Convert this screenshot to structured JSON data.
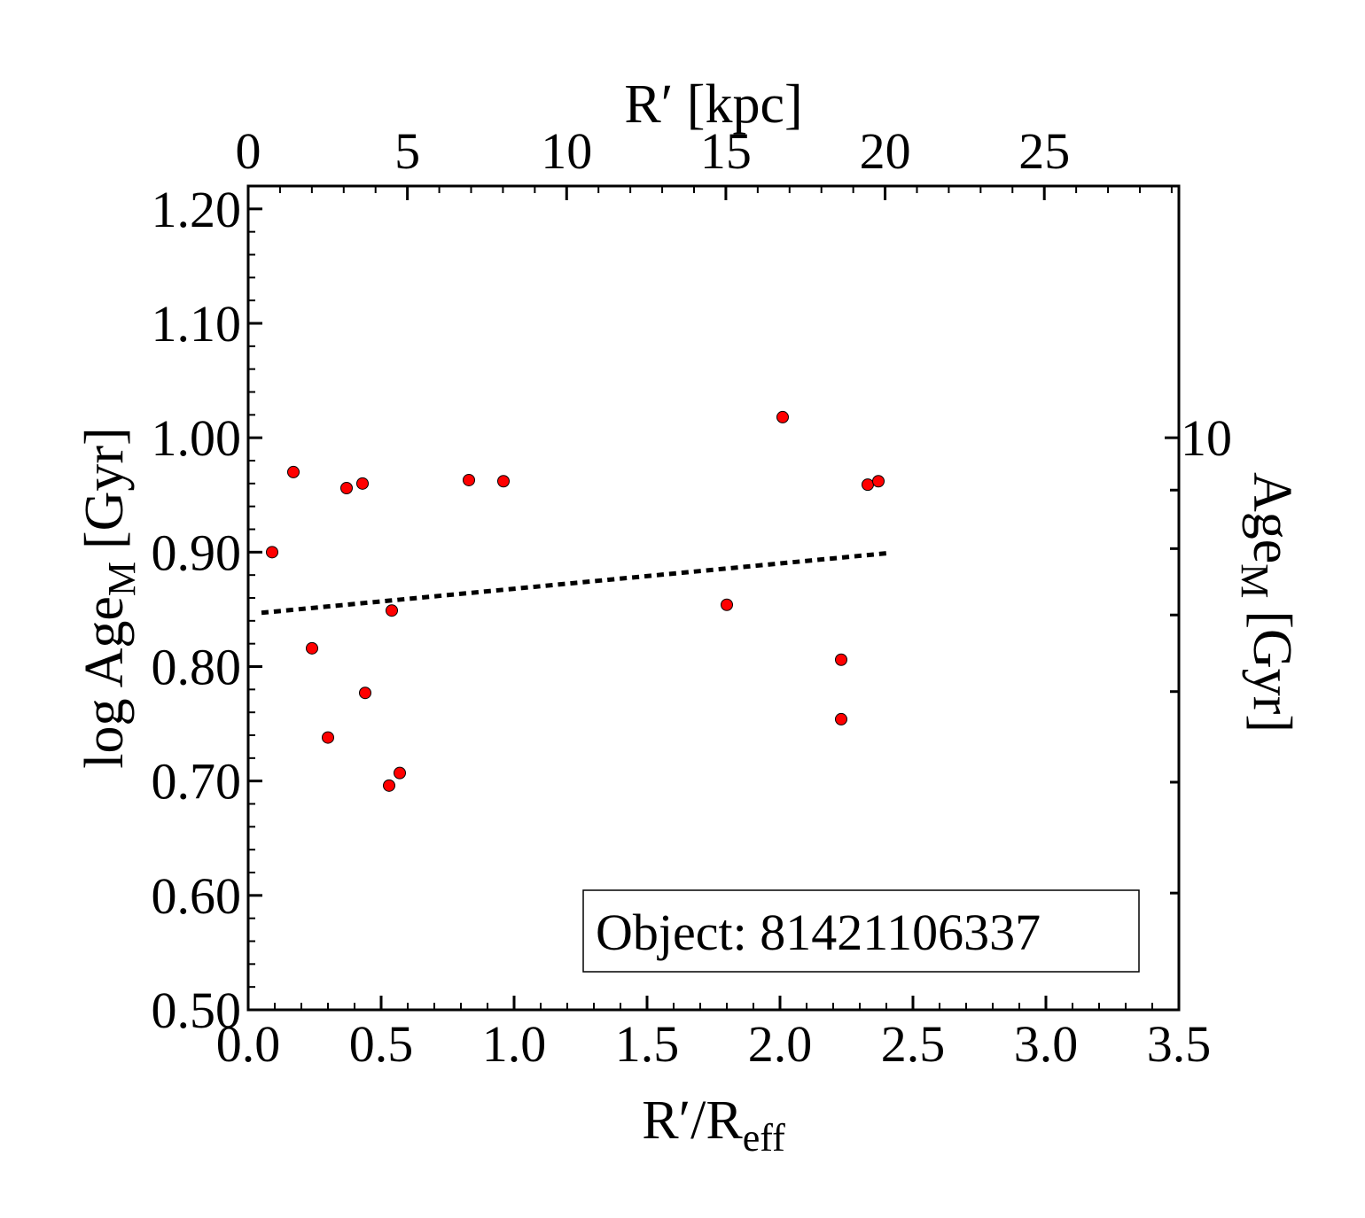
{
  "chart_data": {
    "type": "scatter",
    "xlabel": "R′/R",
    "xlabel_sub": "eff",
    "ylabel": "log Age",
    "ylabel_sub": "M",
    "ylabel_unit": "[Gyr]",
    "top_xlabel": "R′ [kpc]",
    "right_ylabel": "Age",
    "right_ylabel_sub": "M",
    "right_ylabel_unit": "[Gyr]",
    "xlim": [
      0.0,
      3.5
    ],
    "ylim": [
      0.5,
      1.22
    ],
    "x_ticks": [
      "0.0",
      "0.5",
      "1.0",
      "1.5",
      "2.0",
      "2.5",
      "3.0",
      "3.5"
    ],
    "x_tick_values": [
      0.0,
      0.5,
      1.0,
      1.5,
      2.0,
      2.5,
      3.0,
      3.5
    ],
    "y_ticks": [
      "0.50",
      "0.60",
      "0.70",
      "0.80",
      "0.90",
      "1.00",
      "1.10",
      "1.20"
    ],
    "y_tick_values": [
      0.5,
      0.6,
      0.7,
      0.8,
      0.9,
      1.0,
      1.1,
      1.2
    ],
    "top_x_ticks": [
      "0",
      "5",
      "10",
      "15",
      "20",
      "25"
    ],
    "top_x_tick_values_kpc": [
      0,
      5,
      10,
      15,
      20,
      25
    ],
    "kpc_per_reff": 8.35,
    "right_y_ticks": [
      "10"
    ],
    "right_y_tick_values_gyr": [
      10
    ],
    "right_minor_ticks_gyr": [
      4,
      5,
      6,
      7,
      8,
      9
    ],
    "annotation": "Object: 81421106337",
    "marker_color": "#ff0000",
    "series": [
      {
        "points": [
          {
            "x": 0.09,
            "y": 0.9
          },
          {
            "x": 0.17,
            "y": 0.97
          },
          {
            "x": 0.24,
            "y": 0.816
          },
          {
            "x": 0.3,
            "y": 0.738
          },
          {
            "x": 0.37,
            "y": 0.956
          },
          {
            "x": 0.43,
            "y": 0.96
          },
          {
            "x": 0.44,
            "y": 0.777
          },
          {
            "x": 0.54,
            "y": 0.849
          },
          {
            "x": 0.53,
            "y": 0.696
          },
          {
            "x": 0.57,
            "y": 0.707
          },
          {
            "x": 0.83,
            "y": 0.963
          },
          {
            "x": 0.96,
            "y": 0.962
          },
          {
            "x": 1.8,
            "y": 0.854
          },
          {
            "x": 2.01,
            "y": 1.018
          },
          {
            "x": 2.23,
            "y": 0.806
          },
          {
            "x": 2.23,
            "y": 0.754
          },
          {
            "x": 2.33,
            "y": 0.959
          },
          {
            "x": 2.37,
            "y": 0.962
          }
        ]
      }
    ],
    "fit_line": {
      "x": [
        0.05,
        2.4
      ],
      "y": [
        0.847,
        0.899
      ],
      "style": "dotted"
    }
  }
}
